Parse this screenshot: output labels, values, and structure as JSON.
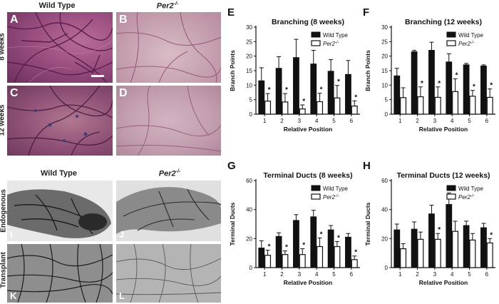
{
  "columns_top": {
    "wild_type": "Wild Type",
    "per2_base": "Per2",
    "per2_sup": "-/-"
  },
  "rows_top": {
    "r1": "8 weeks",
    "r2": "12 weeks"
  },
  "columns_bottom": {
    "wild_type": "Wild Type",
    "per2_base": "Per2",
    "per2_sup": "-/-"
  },
  "rows_bottom": {
    "r1": "Endogenous",
    "r2": "Transplant"
  },
  "panel_letters": {
    "A": "A",
    "B": "B",
    "C": "C",
    "D": "D",
    "I": "I",
    "J": "J",
    "K": "K",
    "L": "L"
  },
  "colors": {
    "wild_type": "#111111",
    "per2": "#ffffff",
    "stain_purple": "#a25a86",
    "stain_pale": "#c7a8b6"
  },
  "chart_data": [
    {
      "id": "E",
      "panel_letter": "E",
      "type": "bar",
      "title": "Branching (8 weeks)",
      "xlabel": "Relative Position",
      "ylabel": "Branch Points",
      "categories": [
        "1",
        "2",
        "3",
        "4",
        "5",
        "6"
      ],
      "yticks": [
        "0",
        "5",
        "10",
        "15",
        "20",
        "25",
        "30"
      ],
      "ylim": [
        0,
        30
      ],
      "legend": {
        "wt": "Wild Type",
        "ko_base": "Per2",
        "ko_sup": "-/-",
        "position": "top-right"
      },
      "series": [
        {
          "name": "Wild Type",
          "values": [
            11.5,
            15.8,
            19.5,
            17.3,
            14.8,
            13.7
          ],
          "errors": [
            4.5,
            4.0,
            6.3,
            4.7,
            4.0,
            4.8
          ]
        },
        {
          "name": "Per2-/-",
          "values": [
            4.5,
            4.2,
            1.8,
            4.3,
            5.6,
            2.8
          ],
          "errors": [
            2.6,
            2.9,
            1.4,
            2.9,
            4.3,
            1.8
          ]
        }
      ],
      "significance": [
        "*",
        "*",
        "*",
        "*",
        "*",
        "*"
      ]
    },
    {
      "id": "F",
      "panel_letter": "F",
      "type": "bar",
      "title": "Branching (12 weeks)",
      "xlabel": "Relative Position",
      "ylabel": "Branch Points",
      "categories": [
        "1",
        "2",
        "3",
        "4",
        "5",
        "6"
      ],
      "yticks": [
        "0",
        "5",
        "10",
        "15",
        "20",
        "25",
        "30"
      ],
      "ylim": [
        0,
        30
      ],
      "legend": {
        "wt": "Wild Type",
        "ko_base": "Per2",
        "ko_sup": "-/-",
        "position": "top-right"
      },
      "series": [
        {
          "name": "Wild Type",
          "values": [
            13.2,
            21.5,
            22.0,
            18.0,
            17.0,
            16.6
          ],
          "errors": [
            2.6,
            0.5,
            2.8,
            2.8,
            0.5,
            0.4
          ]
        },
        {
          "name": "Per2-/-",
          "values": [
            5.7,
            6.0,
            5.8,
            7.8,
            6.2,
            5.8
          ],
          "errors": [
            3.4,
            3.4,
            3.6,
            4.4,
            2.0,
            2.9
          ]
        }
      ],
      "significance": [
        "",
        "*",
        "*",
        "*",
        "*",
        "*"
      ]
    },
    {
      "id": "G",
      "panel_letter": "G",
      "type": "bar",
      "title": "Terminal Ducts (8 weeks)",
      "xlabel": "Relative Position",
      "ylabel": "Terminal Ducts",
      "categories": [
        "1",
        "2",
        "3",
        "4",
        "5",
        "6"
      ],
      "yticks": [
        "0",
        "20",
        "40",
        "60"
      ],
      "ylim": [
        0,
        60
      ],
      "legend": {
        "wt": "Wild Type",
        "ko_base": "Per2",
        "ko_sup": "-/-",
        "position": "top-right"
      },
      "series": [
        {
          "name": "Wild Type",
          "values": [
            13.5,
            21.5,
            32.5,
            35.0,
            26.0,
            21.0
          ],
          "errors": [
            5.0,
            2.5,
            4.0,
            4.5,
            3.0,
            2.5
          ]
        },
        {
          "name": "Per2-/-",
          "values": [
            8.5,
            9.0,
            9.0,
            14.5,
            14.5,
            5.5
          ],
          "errors": [
            3.5,
            2.5,
            4.0,
            6.0,
            3.5,
            2.5
          ]
        }
      ],
      "significance": [
        "*",
        "*",
        "*",
        "*",
        "*",
        "*"
      ]
    },
    {
      "id": "H",
      "panel_letter": "H",
      "type": "bar",
      "title": "Terminal Ducts (12 weeks)",
      "xlabel": "Relative Position",
      "ylabel": "Terminal Ducts",
      "categories": [
        "1",
        "2",
        "3",
        "4",
        "5",
        "6"
      ],
      "yticks": [
        "0",
        "20",
        "40",
        "60"
      ],
      "ylim": [
        0,
        60
      ],
      "legend": {
        "wt": "Wild Type",
        "ko_base": "Per2",
        "ko_sup": "-/-",
        "position": "top-right"
      },
      "series": [
        {
          "name": "Wild Type",
          "values": [
            26.0,
            26.5,
            37.0,
            43.5,
            29.0,
            27.5
          ],
          "errors": [
            4.0,
            5.0,
            6.0,
            8.0,
            3.0,
            3.0
          ]
        },
        {
          "name": "Per2-/-",
          "values": [
            13.0,
            19.5,
            19.5,
            25.0,
            19.0,
            17.0
          ],
          "errors": [
            3.5,
            5.0,
            4.0,
            7.0,
            4.5,
            3.0
          ]
        }
      ],
      "significance": [
        "",
        "",
        "*",
        "",
        "",
        "*"
      ]
    }
  ]
}
